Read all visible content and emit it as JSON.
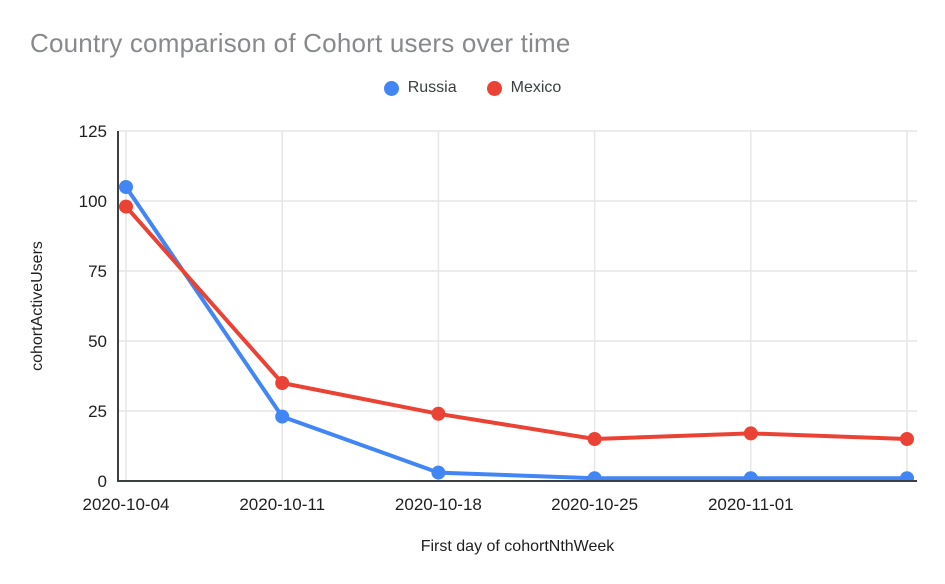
{
  "title": "Country comparison of Cohort users over time",
  "chart_data": {
    "type": "line",
    "title": "Country comparison of Cohort users over time",
    "xlabel": "First day of cohortNthWeek",
    "ylabel": "cohortActiveUsers",
    "categories": [
      "2020-10-04",
      "2020-10-11",
      "2020-10-18",
      "2020-10-25",
      "2020-11-01",
      ""
    ],
    "series": [
      {
        "name": "Russia",
        "color": "#4285F4",
        "values": [
          105,
          23,
          3,
          1,
          1,
          1
        ]
      },
      {
        "name": "Mexico",
        "color": "#EA4335",
        "values": [
          98,
          35,
          24,
          15,
          17,
          15
        ]
      }
    ],
    "y_ticks": [
      0,
      25,
      50,
      75,
      100,
      125
    ],
    "ylim": [
      0,
      125
    ],
    "grid": true,
    "legend_position": "top",
    "point_style": "filled-circle"
  },
  "colors": {
    "title_text": "#87898c",
    "axis_text": "#1f1f1f",
    "legend_text": "#3c4043",
    "gridline": "#e6e6e6",
    "axis_line": "#3c4043",
    "background": "#ffffff",
    "series_russia": "#4285F4",
    "series_mexico": "#EA4335"
  }
}
